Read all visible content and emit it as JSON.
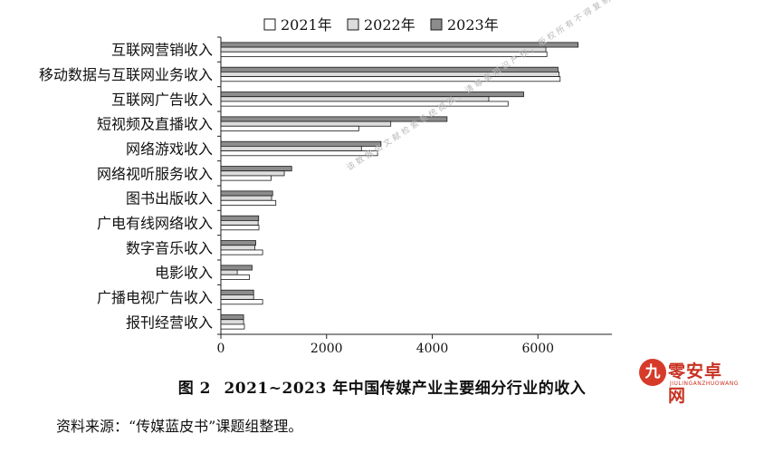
{
  "chart_data": {
    "type": "bar",
    "orientation": "horizontal",
    "categories": [
      "互联网营销收入",
      "移动数据与互联网业务收入",
      "互联网广告收入",
      "短视频及直播收入",
      "网络游戏收入",
      "网络视听服务收入",
      "图书出版收入",
      "广电有线网络收入",
      "数字音乐收入",
      "电影收入",
      "广播电视广告收入",
      "报刊经营收入"
    ],
    "series": [
      {
        "name": "2021年",
        "color": "#ffffff",
        "values": [
          6170,
          6420,
          5435,
          2610,
          2965,
          950,
          1040,
          720,
          790,
          540,
          790,
          445
        ]
      },
      {
        "name": "2022年",
        "color": "#dcdcdc",
        "values": [
          6150,
          6400,
          5070,
          3215,
          2660,
          1200,
          960,
          705,
          640,
          310,
          620,
          430
        ]
      },
      {
        "name": "2023年",
        "color": "#8c8c8c",
        "values": [
          6760,
          6380,
          5730,
          4280,
          3030,
          1340,
          980,
          715,
          660,
          590,
          620,
          430
        ]
      }
    ],
    "xticks": [
      "0",
      "2000",
      "4000",
      "6000"
    ],
    "xlim": [
      0,
      7400
    ],
    "legend_position": "top",
    "grid": false
  },
  "caption": {
    "figure_no": "图 2",
    "title": "2021~2023 年中国传媒产业主要细分行业的收入"
  },
  "source_note": "资料来源：“传媒蓝皮书”课题组整理。",
  "watermark": {
    "logo_glyph": "九",
    "logo_text": "零安卓网",
    "logo_sub": "JIULINGANZHUOWANG",
    "diagonal_text": "该数据由文献检索系统提供，请尊重知识产权，版权所有不得复制"
  }
}
